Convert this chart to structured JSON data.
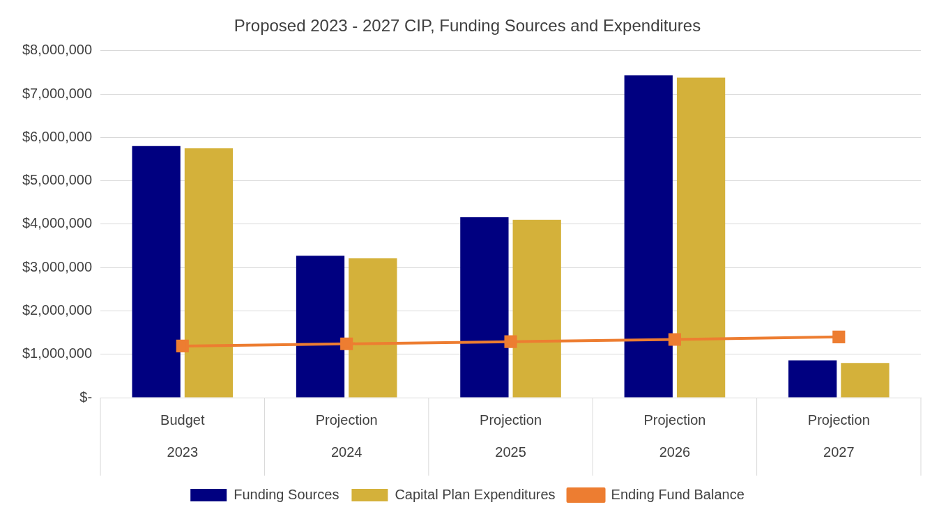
{
  "chart_data": {
    "type": "bar",
    "title": "Proposed 2023 - 2027 CIP, Funding Sources and Expenditures",
    "categories": [
      "Budget\n2023",
      "Projection\n2024",
      "Projection\n2025",
      "Projection\n2026",
      "Projection\n2027"
    ],
    "series": [
      {
        "name": "Funding Sources",
        "color": "#000080",
        "values": [
          5800000,
          3270000,
          4160000,
          7430000,
          860000
        ]
      },
      {
        "name": "Capital Plan Expenditures",
        "color": "#d4b13a",
        "values": [
          5750000,
          3210000,
          4100000,
          7380000,
          800000
        ]
      },
      {
        "name": "Ending Fund Balance",
        "type": "line",
        "color": "#ed7d31",
        "marker": "square",
        "values": [
          1190000,
          1240000,
          1290000,
          1340000,
          1400000
        ]
      }
    ],
    "ylim": [
      0,
      8000000
    ],
    "yticks": [
      {
        "value": 0,
        "label": "$-"
      },
      {
        "value": 1000000,
        "label": "$1,000,000"
      },
      {
        "value": 2000000,
        "label": "$2,000,000"
      },
      {
        "value": 3000000,
        "label": "$3,000,000"
      },
      {
        "value": 4000000,
        "label": "$4,000,000"
      },
      {
        "value": 5000000,
        "label": "$5,000,000"
      },
      {
        "value": 6000000,
        "label": "$6,000,000"
      },
      {
        "value": 7000000,
        "label": "$7,000,000"
      },
      {
        "value": 8000000,
        "label": "$8,000,000"
      }
    ],
    "grid": "y",
    "legend": "bottom"
  }
}
